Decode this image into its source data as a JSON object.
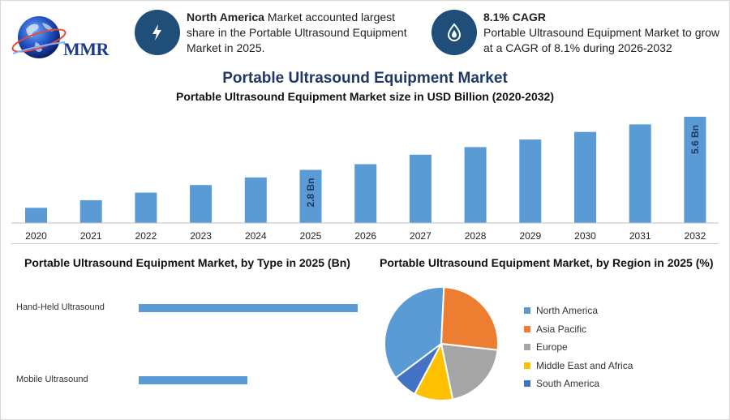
{
  "logo": {
    "text": "MMR"
  },
  "info_cards": [
    {
      "icon": "lightning-icon",
      "bold": "North America",
      "text": " Market accounted largest share in the Portable Ultrasound Equipment Market in 2025."
    },
    {
      "icon": "drop-icon",
      "bold": "8.1% CAGR",
      "text": "Portable Ultrasound Equipment Market to grow at a CAGR of 8.1% during 2026-2032"
    }
  ],
  "main_title": "Portable Ultrasound Equipment Market",
  "chart_data": [
    {
      "type": "bar",
      "title": "Portable Ultrasound Equipment Market size in USD Billion (2020-2032)",
      "categories": [
        "2020",
        "2021",
        "2022",
        "2023",
        "2024",
        "2025",
        "2026",
        "2027",
        "2028",
        "2029",
        "2030",
        "2031",
        "2032"
      ],
      "values": [
        0.8,
        1.2,
        1.6,
        2.0,
        2.4,
        2.8,
        3.1,
        3.6,
        4.0,
        4.4,
        4.8,
        5.2,
        5.6
      ],
      "data_labels": {
        "5": "2.8 Bn",
        "12": "5.6 Bn"
      },
      "ylim": [
        0,
        6
      ],
      "color": "#5b9bd5",
      "grid": false
    },
    {
      "type": "bar",
      "orientation": "horizontal",
      "title": "Portable Ultrasound Equipment Market, by Type in 2025 (Bn)",
      "categories": [
        "Hand-Held Ultrasound",
        "Mobile Ultrasound"
      ],
      "values": [
        1.85,
        0.92
      ],
      "xlim": [
        0,
        2
      ],
      "color": "#5b9bd5"
    },
    {
      "type": "pie",
      "title": "Portable Ultrasound Equipment Market, by Region in 2025 (%)",
      "categories": [
        "North America",
        "Asia Pacific",
        "Europe",
        "Middle East and Africa",
        "South America"
      ],
      "values": [
        36,
        26,
        20,
        11,
        7
      ],
      "colors": [
        "#5b9bd5",
        "#ed7d31",
        "#a5a5a5",
        "#ffc000",
        "#4472c4"
      ],
      "legend": "right"
    }
  ]
}
